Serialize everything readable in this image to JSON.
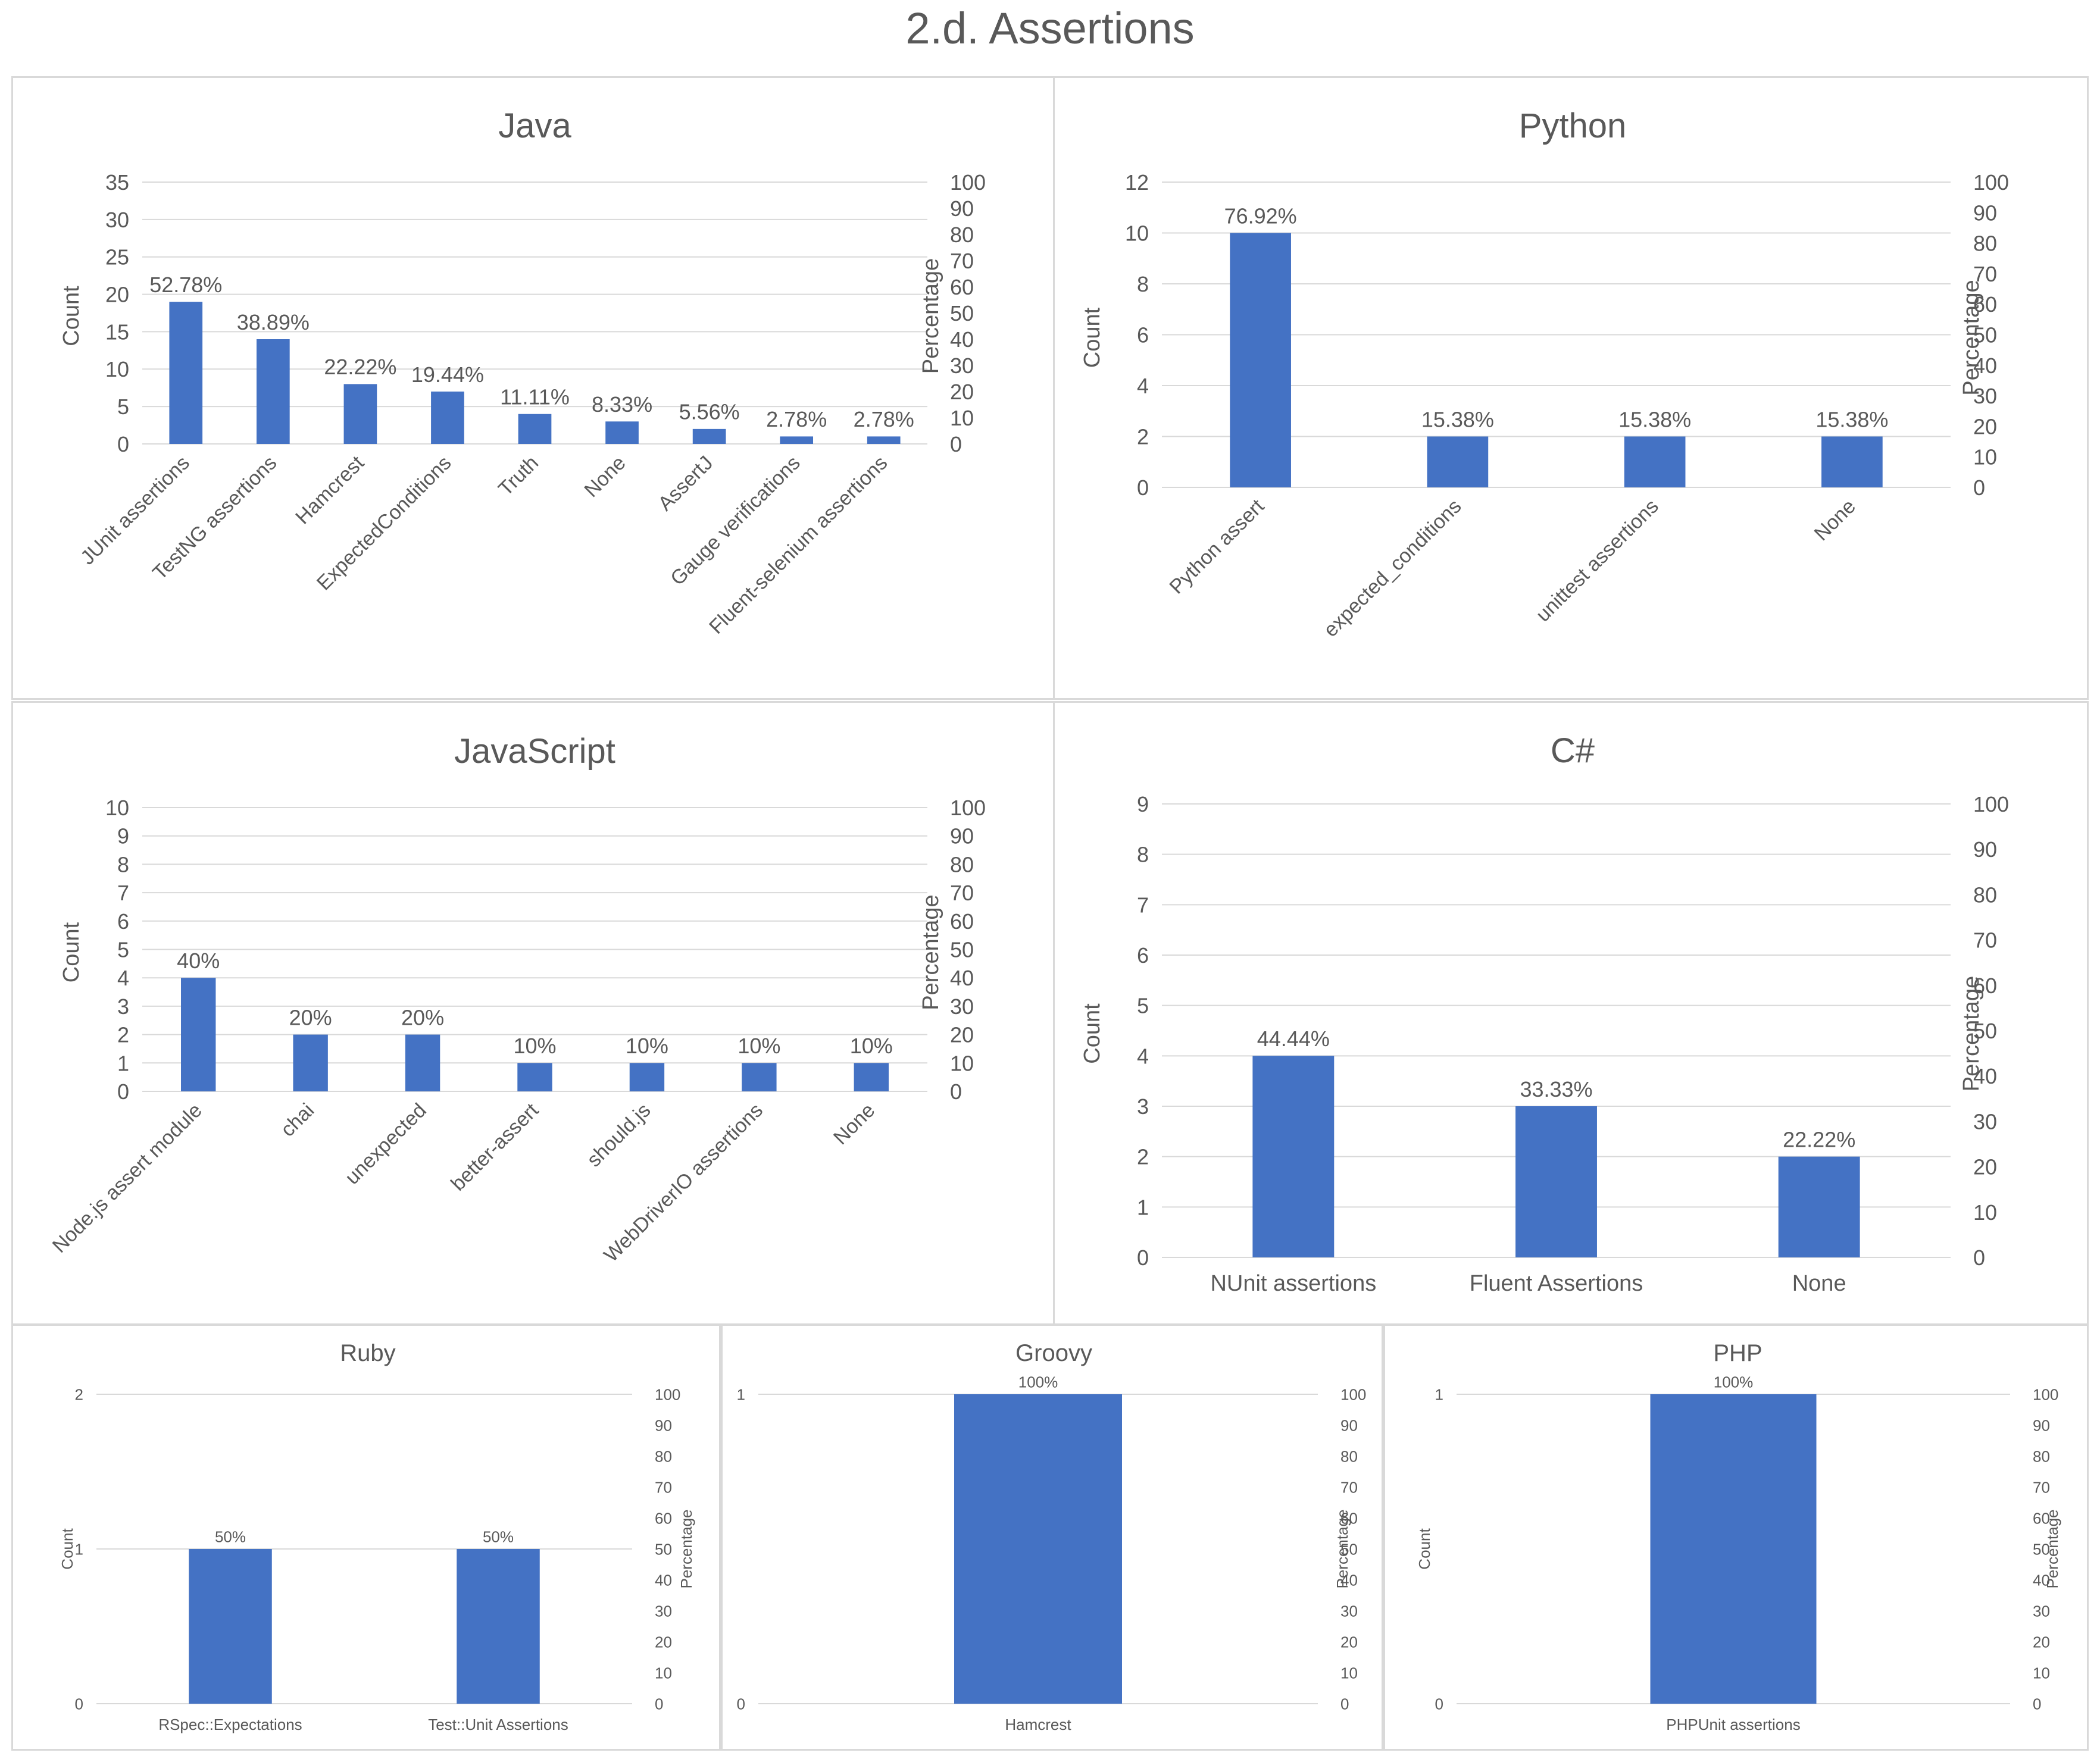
{
  "page_title": "2.d. Assertions",
  "colors": {
    "bar": "#4472c4",
    "grid": "#d9d9d9",
    "text": "#595959",
    "border": "#d9d9d9"
  },
  "chart_data": [
    {
      "id": "java",
      "type": "bar",
      "title": "Java",
      "ylabel": "Count",
      "y2label": "Percentage",
      "ylim": [
        0,
        35
      ],
      "yticks": [
        0,
        5,
        10,
        15,
        20,
        25,
        30,
        35
      ],
      "y2lim": [
        0,
        100
      ],
      "y2ticks": [
        0,
        10,
        20,
        30,
        40,
        50,
        60,
        70,
        80,
        90,
        100
      ],
      "categories": [
        "JUnit assertions",
        "TestNG assertions",
        "Hamcrest",
        "ExpectedConditions",
        "Truth",
        "None",
        "AssertJ",
        "Gauge verifications",
        "Fluent-selenium assertions"
      ],
      "values": [
        19,
        14,
        8,
        7,
        4,
        3,
        2,
        1,
        1
      ],
      "data_labels": [
        "52.78%",
        "38.89%",
        "22.22%",
        "19.44%",
        "11.11%",
        "8.33%",
        "5.56%",
        "2.78%",
        "2.78%"
      ]
    },
    {
      "id": "python",
      "type": "bar",
      "title": "Python",
      "ylabel": "Count",
      "y2label": "Percentage",
      "ylim": [
        0,
        12
      ],
      "yticks": [
        0,
        2,
        4,
        6,
        8,
        10,
        12
      ],
      "y2lim": [
        0,
        100
      ],
      "y2ticks": [
        0,
        10,
        20,
        30,
        40,
        50,
        60,
        70,
        80,
        90,
        100
      ],
      "categories": [
        "Python assert",
        "expected_conditions",
        "unittest assertions",
        "None"
      ],
      "values": [
        10,
        2,
        2,
        2
      ],
      "data_labels": [
        "76.92%",
        "15.38%",
        "15.38%",
        "15.38%"
      ]
    },
    {
      "id": "javascript",
      "type": "bar",
      "title": "JavaScript",
      "ylabel": "Count",
      "y2label": "Percentage",
      "ylim": [
        0,
        10
      ],
      "yticks": [
        0,
        1,
        2,
        3,
        4,
        5,
        6,
        7,
        8,
        9,
        10
      ],
      "y2lim": [
        0,
        100
      ],
      "y2ticks": [
        0,
        10,
        20,
        30,
        40,
        50,
        60,
        70,
        80,
        90,
        100
      ],
      "categories": [
        "Node.js assert module",
        "chai",
        "unexpected",
        "better-assert",
        "should.js",
        "WebDriverIO assertions",
        "None"
      ],
      "values": [
        4,
        2,
        2,
        1,
        1,
        1,
        1
      ],
      "data_labels": [
        "40%",
        "20%",
        "20%",
        "10%",
        "10%",
        "10%",
        "10%"
      ]
    },
    {
      "id": "csharp",
      "type": "bar",
      "title": "C#",
      "ylabel": "Count",
      "y2label": "Percentage",
      "ylim": [
        0,
        9
      ],
      "yticks": [
        0,
        1,
        2,
        3,
        4,
        5,
        6,
        7,
        8,
        9
      ],
      "y2lim": [
        0,
        100
      ],
      "y2ticks": [
        0,
        10,
        20,
        30,
        40,
        50,
        60,
        70,
        80,
        90,
        100
      ],
      "categories": [
        "NUnit assertions",
        "Fluent Assertions",
        "None"
      ],
      "values": [
        4,
        3,
        2
      ],
      "data_labels": [
        "44.44%",
        "33.33%",
        "22.22%"
      ]
    },
    {
      "id": "ruby",
      "type": "bar",
      "title": "Ruby",
      "ylabel": "Count",
      "y2label": "Percentage",
      "ylim": [
        0,
        2
      ],
      "yticks": [
        0,
        1,
        2
      ],
      "y2lim": [
        0,
        100
      ],
      "y2ticks": [
        0,
        10,
        20,
        30,
        40,
        50,
        60,
        70,
        80,
        90,
        100
      ],
      "categories": [
        "RSpec::Expectations",
        "Test::Unit Assertions"
      ],
      "values": [
        1,
        1
      ],
      "data_labels": [
        "50%",
        "50%"
      ]
    },
    {
      "id": "groovy",
      "type": "bar",
      "title": "Groovy",
      "ylabel": "",
      "y2label": "Percentage",
      "ylim": [
        0,
        1
      ],
      "yticks": [
        0,
        1
      ],
      "y2lim": [
        0,
        100
      ],
      "y2ticks": [
        0,
        10,
        20,
        30,
        40,
        50,
        60,
        70,
        80,
        90,
        100
      ],
      "categories": [
        "Hamcrest"
      ],
      "values": [
        1
      ],
      "data_labels": [
        "100%"
      ]
    },
    {
      "id": "php",
      "type": "bar",
      "title": "PHP",
      "ylabel": "Count",
      "y2label": "Percentage",
      "ylim": [
        0,
        1
      ],
      "yticks": [
        0,
        1
      ],
      "y2lim": [
        0,
        100
      ],
      "y2ticks": [
        0,
        10,
        20,
        30,
        40,
        50,
        60,
        70,
        80,
        90,
        100
      ],
      "categories": [
        "PHPUnit assertions"
      ],
      "values": [
        1
      ],
      "data_labels": [
        "100%"
      ]
    }
  ]
}
